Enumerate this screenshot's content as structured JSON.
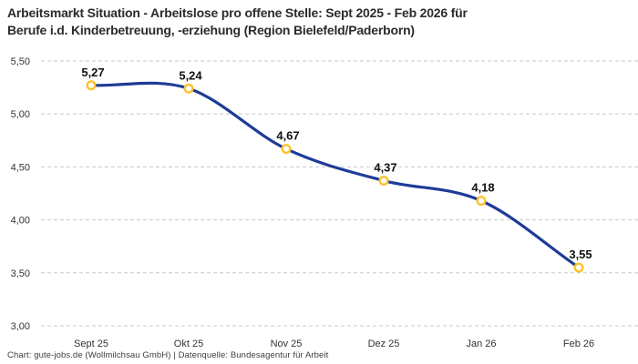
{
  "title": {
    "line1": "Arbeitsmarkt Situation - Arbeitslose pro offene Stelle: Sept 2025 - Feb 2026 für",
    "line2": "Berufe i.d. Kinderbetreuung, -erziehung (Region Bielefeld/Paderborn)"
  },
  "footer": {
    "text": "Chart: gute-jobs.de (Wollmilchsau GmbH) | Datenquelle: Bundesagentur für Arbeit"
  },
  "chart_data": {
    "type": "line",
    "title": "Arbeitsmarkt Situation - Arbeitslose pro offene Stelle: Sept 2025 - Feb 2026 für Berufe i.d. Kinderbetreuung, -erziehung (Region Bielefeld/Paderborn)",
    "categories": [
      "Sept 25",
      "Okt 25",
      "Nov 25",
      "Dez 25",
      "Jan 26",
      "Feb 26"
    ],
    "values": [
      5.27,
      5.24,
      4.67,
      4.37,
      4.18,
      3.55
    ],
    "value_labels": [
      "5,27",
      "5,24",
      "4,67",
      "4,37",
      "4,18",
      "3,55"
    ],
    "xlabel": "",
    "ylabel": "",
    "ylim": [
      3.0,
      5.5
    ],
    "yticks": [
      5.5,
      5.0,
      4.5,
      4.0,
      3.5,
      3.0
    ],
    "ytick_labels": [
      "5,50",
      "5,00",
      "4,50",
      "4,00",
      "3,50",
      "3,00"
    ],
    "grid": "horizontal-dashed",
    "legend": "none",
    "colors": {
      "line": "#1e3b96",
      "marker_ring": "#fcc22e",
      "marker_fill": "#ffffff",
      "grid": "#c8c8c8",
      "tick_label": "#333333",
      "data_label": "#111111"
    }
  }
}
